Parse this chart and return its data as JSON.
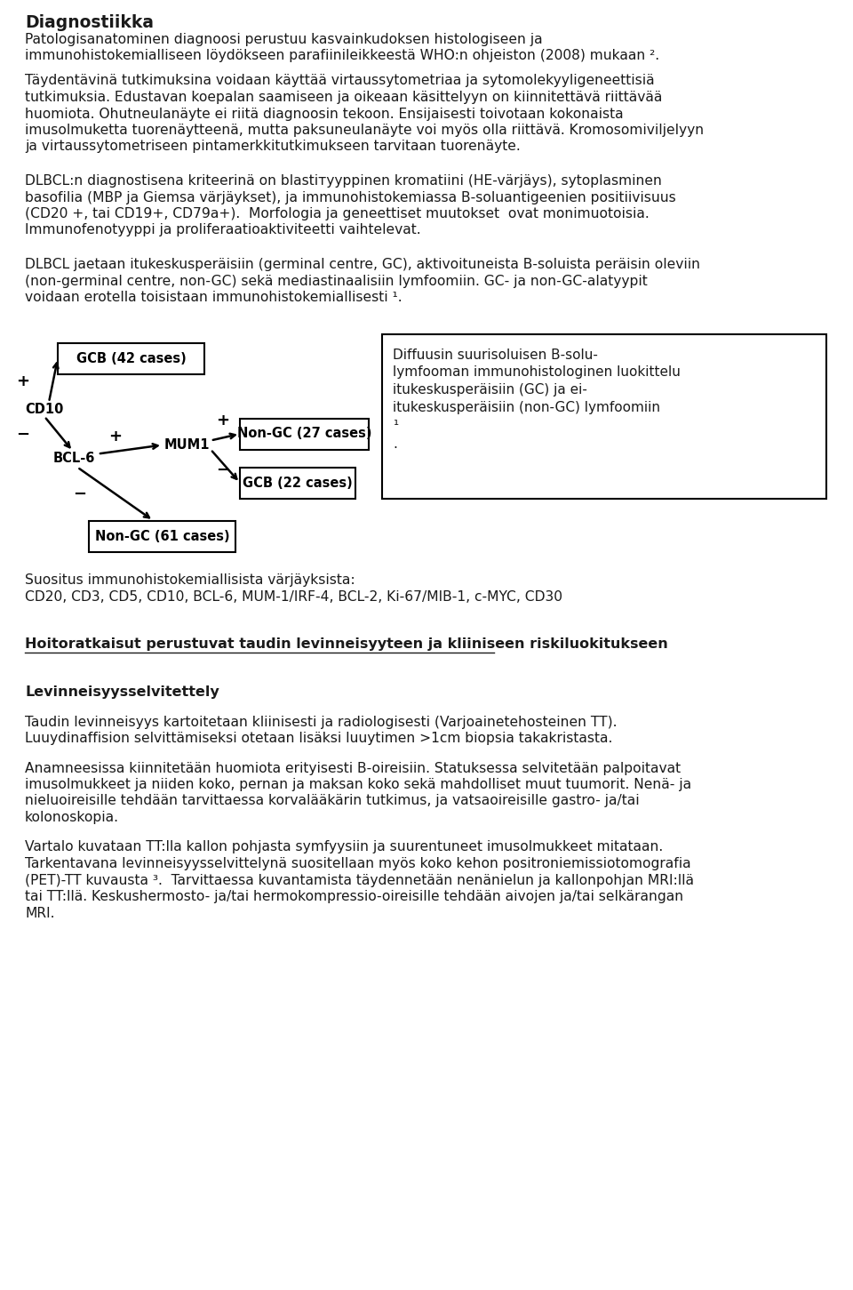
{
  "title": "Diagnostiikka",
  "bg_color": "#ffffff",
  "text_color": "#1a1a1a",
  "paragraphs": [
    "Patologisanatominen diagnoosi perustuu kasvainkudoksen histologiseen ja immunohistokemialliseen löydökseen parafiinileikkeeestä WHO:n ohjeiston (2008) mukaan ².",
    "Täydentävinä tutkimuksina voidaan käyttää virtaussytometriaa ja sytomolekyyligeneettisiä tutkimuksia. Edustavan koepalan saamiseen ja oikeaan käsittelyyn on kiinnitettävä riittävää huomiota. Ohutneulanäyte ei riitä diagnoosin tekoon. Ensijaisesti toivotaan kokonaista imusolmuketta tuorenäyttee nä, mutta paksuneulanäyte voi myös olla riittävä. Kromosomiviljelyyn ja virtaussytometriseen pintamerkkitutkimukseen tarvitaan tuorenäyte.",
    "DLBCL:n diagnostisena kriteerinä on blastiтyyppinen kromatiini (HE-värjäys), sytoplasminen basofilia (MBP ja Giemsa värjäykset), ja immunohistokemiassa B-soluantigeenien positiivisuus (CD20 +, tai CD19+, CD79a+).  Morfologia ja geneettiset muutokset  ovat monimuotoisia. Immunofenotyyppi ja proliferaatioaktiviteetti vaihtelevat.",
    "DLBCL jaetaan itukeskusperäisiin (germinal centre, GC), aktivoituneista B-soluista peräisin oleviin (non-germinal centre, non-GC) sekä mediastinaalisiin lymfoomiin. GC- ja non-GC-alatyypit voidaan erotella toisistaan immunohistokemiallisesti ¹."
  ],
  "section2_header": "Hoitoratkaisut perustuvat taudin levinneisyyteen ja kliiniseen riskiluokitukseen",
  "subsection_header": "Levinneisyysselvitettely",
  "para_after_diagram_1": "Suositus immunohistokemiallisista värjäyksista:",
  "para_after_diagram_2": "CD20, CD3, CD5, CD10, BCL-6, MUM-1/IRF-4, BCL-2, Ki-67/MIB-1, c-MYC, CD30",
  "levinneisyys_para1": "Taudin levinneisyys kartoitetaan kliinisesti ja radiologisesti (Varjoainetehosteinen TT). Luuydinaffision selvittämiseksi otetaan lisäksi luuytimen >1cm biopsia takakristasta.",
  "levinneisyys_para2": "Anamneesissa kiinniketään huomiota erityisesti B-oireisiin. Statuksessa selvitetään palpoitavat imusolmukkeet ja niiden koko, pernan ja maksan koko sekä mahdolliset muut tuumorit. Nenä- ja nieluoireisille tehdään tarvittaessa korvalaäkärin tutkimus, ja vatsaoireisille gastro- ja/tai kolonoskopia.",
  "levinneisyys_para3": "Vartalo kuvataan TT:lla kallon pohjasta symfyäysiin ja suurentuneet imusolmukkeet mitataan. Tarkentavana levinneisyysselvittelynbä suositellaan myös koko kehon positroniemissiotomografia (PET)-TT kuvausta ³.  Tarvittaessa kuvantamista täydennetään nenänielun ja kallonpohjan MRI:llä tai TT:llä. Keskushermosto- ja/tai hermokompressio-oireisille tehdä一n aivojen ja/tai selkärangan MRI.",
  "diagram_caption_lines": [
    "Diffuusin suurisoluisen B-solu-",
    "lymfooman immunohistologinen luokittelu",
    "itukeskusperäisiin (GC) ja ei-",
    "itukeskusperäisiin (non-GC) lymfoomiin",
    "¹",
    "."
  ]
}
